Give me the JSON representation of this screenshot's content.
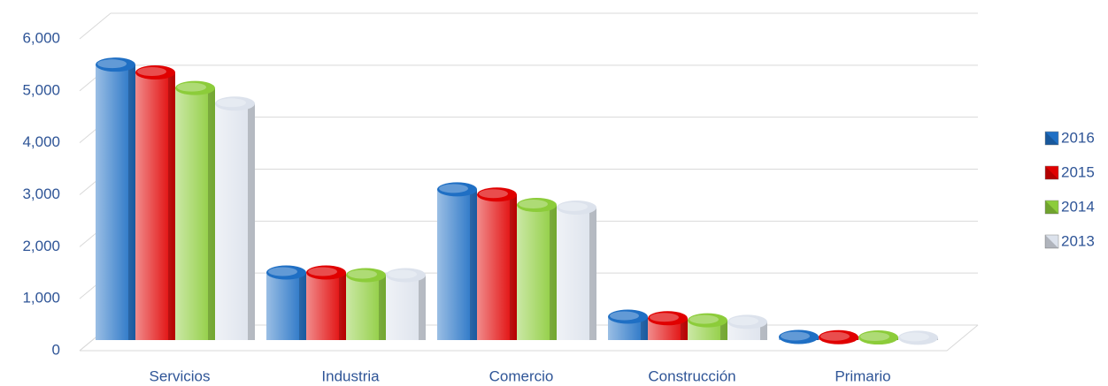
{
  "chart_data": {
    "type": "bar",
    "categories": [
      "Servicios",
      "Industria",
      "Comercio",
      "Construcción",
      "Primario"
    ],
    "series": [
      {
        "name": "2016",
        "color": "#1f6fc4",
        "values": [
          5300,
          1300,
          2900,
          450,
          60
        ]
      },
      {
        "name": "2015",
        "color": "#e00000",
        "values": [
          5150,
          1300,
          2800,
          420,
          55
        ]
      },
      {
        "name": "2014",
        "color": "#8ccc3a",
        "values": [
          4850,
          1250,
          2600,
          380,
          50
        ]
      },
      {
        "name": "2013",
        "color": "#dce2ec",
        "values": [
          4550,
          1250,
          2550,
          350,
          45
        ]
      }
    ],
    "ylim": [
      0,
      6000
    ],
    "yticks": [
      0,
      {
        "value": 1000,
        "label": "1,000"
      },
      {
        "value": 2000,
        "label": "2,000"
      },
      {
        "value": 3000,
        "label": "3,000"
      },
      {
        "value": 4000,
        "label": "4,000"
      },
      {
        "value": 5000,
        "label": "5,000"
      },
      {
        "value": 6000,
        "label": "6,000"
      }
    ],
    "grid": true,
    "legend": "right"
  }
}
